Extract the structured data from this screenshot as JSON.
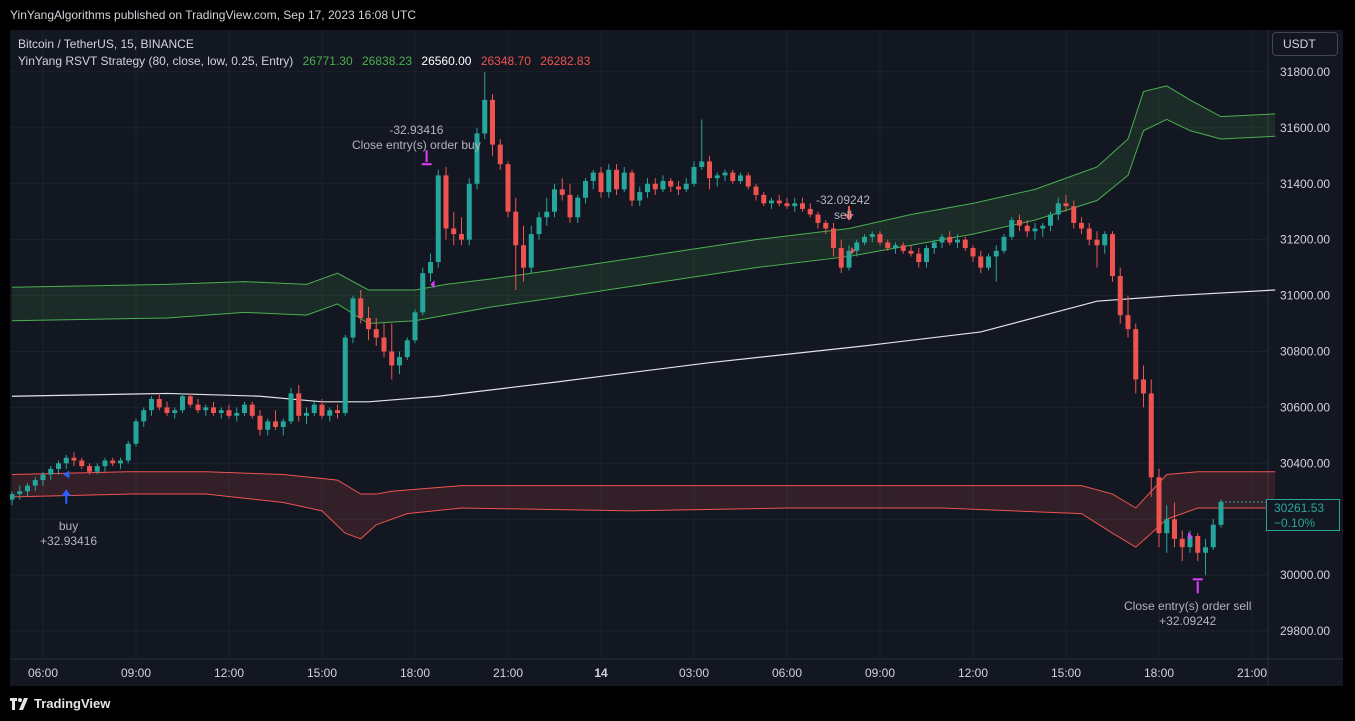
{
  "publisher_line": "YinYangAlgorithms published on TradingView.com, Sep 17, 2023 16:08 UTC",
  "symbol_line": "Bitcoin / TetherUS, 15, BINANCE",
  "indicator": {
    "name": "YinYang RSVT Strategy (80, close, low, 0.25, Entry)",
    "values": [
      "26771.30",
      "26838.23",
      "26560.00",
      "26348.70",
      "26282.83"
    ],
    "value_colors": [
      "#4caf50",
      "#4caf50",
      "#ffffff",
      "#ef5350",
      "#ef5350"
    ]
  },
  "currency_button": "USDT",
  "last_price": {
    "value": "30261.53",
    "change": "−0.10%",
    "color": "#26a69a"
  },
  "annotations": {
    "buy_label": "buy",
    "buy_value": "+32.93416",
    "close_buy_value": "-32.93416",
    "close_buy_label": "Close entry(s) order buy",
    "sell_value": "-32.09242",
    "sell_label": "sell",
    "close_sell_label": "Close entry(s) order sell",
    "close_sell_value": "+32.09242"
  },
  "brand": "TradingView",
  "colors": {
    "bg": "#131722",
    "up": "#26a69a",
    "down": "#ef5350",
    "upper_band": "#4caf50",
    "lower_band": "#ef5350",
    "ma": "#e0e3eb",
    "grid": "#1e222d",
    "signal_buy": "#2962ff",
    "signal_close": "#e040fb",
    "signal_sell": "#ef5350"
  },
  "chart_data": {
    "type": "candlestick",
    "y_ticks": [
      31800,
      31600,
      31400,
      31200,
      31000,
      30800,
      30600,
      30400,
      30200,
      30000,
      29800
    ],
    "y_tick_labels": [
      "31800.00",
      "31600.00",
      "31400.00",
      "31200.00",
      "31000.00",
      "30800.00",
      "30600.00",
      "30400.00",
      "30200.00",
      "30000.00",
      "29800.00"
    ],
    "ylim": [
      29700,
      31950
    ],
    "x_ticks": [
      "06:00",
      "09:00",
      "12:00",
      "15:00",
      "18:00",
      "21:00",
      "14",
      "03:00",
      "06:00",
      "09:00",
      "12:00",
      "15:00",
      "18:00",
      "21:00"
    ],
    "x_tick_bars": [
      4,
      16,
      28,
      40,
      52,
      64,
      76,
      88,
      100,
      112,
      124,
      136,
      148,
      160
    ],
    "candles": [
      [
        30270,
        30300,
        30250,
        30290
      ],
      [
        30290,
        30320,
        30270,
        30300
      ],
      [
        30300,
        30330,
        30280,
        30320
      ],
      [
        30320,
        30350,
        30300,
        30340
      ],
      [
        30340,
        30370,
        30320,
        30360
      ],
      [
        30360,
        30390,
        30340,
        30380
      ],
      [
        30380,
        30410,
        30360,
        30400
      ],
      [
        30400,
        30430,
        30380,
        30420
      ],
      [
        30420,
        30440,
        30390,
        30410
      ],
      [
        30410,
        30420,
        30380,
        30390
      ],
      [
        30390,
        30400,
        30360,
        30370
      ],
      [
        30370,
        30400,
        30360,
        30390
      ],
      [
        30390,
        30420,
        30370,
        30410
      ],
      [
        30410,
        30420,
        30390,
        30400
      ],
      [
        30400,
        30420,
        30380,
        30410
      ],
      [
        30410,
        30480,
        30400,
        30470
      ],
      [
        30470,
        30560,
        30460,
        30550
      ],
      [
        30550,
        30600,
        30530,
        30590
      ],
      [
        30590,
        30640,
        30570,
        30630
      ],
      [
        30630,
        30650,
        30590,
        30600
      ],
      [
        30600,
        30620,
        30570,
        30580
      ],
      [
        30580,
        30600,
        30560,
        30590
      ],
      [
        30590,
        30650,
        30580,
        30640
      ],
      [
        30640,
        30650,
        30600,
        30610
      ],
      [
        30610,
        30630,
        30580,
        30590
      ],
      [
        30590,
        30610,
        30570,
        30600
      ],
      [
        30600,
        30620,
        30570,
        30580
      ],
      [
        30580,
        30600,
        30560,
        30590
      ],
      [
        30590,
        30610,
        30560,
        30570
      ],
      [
        30570,
        30600,
        30550,
        30580
      ],
      [
        30580,
        30620,
        30570,
        30610
      ],
      [
        30610,
        30620,
        30560,
        30570
      ],
      [
        30570,
        30590,
        30500,
        30520
      ],
      [
        30520,
        30560,
        30500,
        30550
      ],
      [
        30550,
        30590,
        30520,
        30530
      ],
      [
        30530,
        30560,
        30500,
        30550
      ],
      [
        30550,
        30670,
        30540,
        30650
      ],
      [
        30650,
        30680,
        30550,
        30570
      ],
      [
        30570,
        30600,
        30540,
        30580
      ],
      [
        30580,
        30620,
        30570,
        30610
      ],
      [
        30610,
        30630,
        30560,
        30570
      ],
      [
        30570,
        30600,
        30550,
        30590
      ],
      [
        30590,
        30610,
        30560,
        30580
      ],
      [
        30580,
        30860,
        30570,
        30850
      ],
      [
        30850,
        31000,
        30830,
        30990
      ],
      [
        30990,
        31020,
        30900,
        30920
      ],
      [
        30920,
        30960,
        30840,
        30880
      ],
      [
        30880,
        30920,
        30820,
        30850
      ],
      [
        30850,
        30900,
        30780,
        30800
      ],
      [
        30800,
        30900,
        30700,
        30750
      ],
      [
        30750,
        30800,
        30720,
        30780
      ],
      [
        30780,
        30850,
        30770,
        30840
      ],
      [
        30840,
        30950,
        30830,
        30940
      ],
      [
        30940,
        31100,
        30930,
        31080
      ],
      [
        31080,
        31150,
        31050,
        31120
      ],
      [
        31120,
        31450,
        31100,
        31430
      ],
      [
        31430,
        31460,
        31200,
        31240
      ],
      [
        31240,
        31300,
        31180,
        31220
      ],
      [
        31220,
        31280,
        31180,
        31200
      ],
      [
        31200,
        31420,
        31180,
        31400
      ],
      [
        31400,
        31600,
        31380,
        31580
      ],
      [
        31580,
        31800,
        31560,
        31700
      ],
      [
        31700,
        31720,
        31500,
        31540
      ],
      [
        31540,
        31560,
        31450,
        31470
      ],
      [
        31470,
        31480,
        31280,
        31300
      ],
      [
        31300,
        31350,
        31020,
        31180
      ],
      [
        31180,
        31250,
        31050,
        31100
      ],
      [
        31100,
        31250,
        31080,
        31220
      ],
      [
        31220,
        31300,
        31200,
        31280
      ],
      [
        31280,
        31350,
        31250,
        31300
      ],
      [
        31300,
        31400,
        31280,
        31380
      ],
      [
        31380,
        31420,
        31340,
        31360
      ],
      [
        31360,
        31400,
        31260,
        31280
      ],
      [
        31280,
        31360,
        31260,
        31350
      ],
      [
        31350,
        31420,
        31330,
        31410
      ],
      [
        31410,
        31450,
        31380,
        31440
      ],
      [
        31440,
        31460,
        31350,
        31370
      ],
      [
        31370,
        31470,
        31350,
        31450
      ],
      [
        31450,
        31470,
        31360,
        31380
      ],
      [
        31380,
        31460,
        31370,
        31440
      ],
      [
        31440,
        31450,
        31320,
        31340
      ],
      [
        31340,
        31390,
        31320,
        31370
      ],
      [
        31370,
        31420,
        31350,
        31400
      ],
      [
        31400,
        31420,
        31360,
        31380
      ],
      [
        31380,
        31430,
        31370,
        31410
      ],
      [
        31410,
        31420,
        31370,
        31390
      ],
      [
        31390,
        31410,
        31360,
        31380
      ],
      [
        31380,
        31420,
        31370,
        31400
      ],
      [
        31400,
        31480,
        31390,
        31460
      ],
      [
        31460,
        31630,
        31450,
        31480
      ],
      [
        31480,
        31500,
        31380,
        31420
      ],
      [
        31420,
        31440,
        31390,
        31430
      ],
      [
        31430,
        31450,
        31410,
        31440
      ],
      [
        31440,
        31450,
        31400,
        31410
      ],
      [
        31410,
        31440,
        31400,
        31430
      ],
      [
        31430,
        31440,
        31380,
        31390
      ],
      [
        31390,
        31400,
        31340,
        31360
      ],
      [
        31360,
        31370,
        31320,
        31330
      ],
      [
        31330,
        31350,
        31310,
        31340
      ],
      [
        31340,
        31360,
        31320,
        31330
      ],
      [
        31330,
        31350,
        31310,
        31320
      ],
      [
        31320,
        31350,
        31300,
        31330
      ],
      [
        31330,
        31350,
        31300,
        31310
      ],
      [
        31310,
        31330,
        31280,
        31290
      ],
      [
        31290,
        31300,
        31240,
        31260
      ],
      [
        31260,
        31270,
        31220,
        31240
      ],
      [
        31240,
        31260,
        31140,
        31170
      ],
      [
        31170,
        31200,
        31080,
        31100
      ],
      [
        31100,
        31180,
        31090,
        31160
      ],
      [
        31160,
        31200,
        31140,
        31190
      ],
      [
        31190,
        31220,
        31180,
        31210
      ],
      [
        31210,
        31230,
        31190,
        31220
      ],
      [
        31220,
        31230,
        31180,
        31190
      ],
      [
        31190,
        31200,
        31160,
        31170
      ],
      [
        31170,
        31190,
        31150,
        31180
      ],
      [
        31180,
        31190,
        31150,
        31160
      ],
      [
        31160,
        31180,
        31140,
        31150
      ],
      [
        31150,
        31170,
        31100,
        31120
      ],
      [
        31120,
        31180,
        31100,
        31170
      ],
      [
        31170,
        31200,
        31150,
        31190
      ],
      [
        31190,
        31220,
        31170,
        31210
      ],
      [
        31210,
        31230,
        31180,
        31190
      ],
      [
        31190,
        31220,
        31170,
        31200
      ],
      [
        31200,
        31210,
        31160,
        31170
      ],
      [
        31170,
        31180,
        31120,
        31140
      ],
      [
        31140,
        31160,
        31080,
        31100
      ],
      [
        31100,
        31150,
        31090,
        31140
      ],
      [
        31140,
        31180,
        31050,
        31160
      ],
      [
        31160,
        31220,
        31150,
        31210
      ],
      [
        31210,
        31280,
        31200,
        31270
      ],
      [
        31270,
        31290,
        31230,
        31250
      ],
      [
        31250,
        31270,
        31210,
        31230
      ],
      [
        31230,
        31260,
        31200,
        31240
      ],
      [
        31240,
        31260,
        31210,
        31250
      ],
      [
        31250,
        31300,
        31230,
        31290
      ],
      [
        31290,
        31350,
        31270,
        31330
      ],
      [
        31330,
        31360,
        31300,
        31320
      ],
      [
        31320,
        31340,
        31240,
        31260
      ],
      [
        31260,
        31280,
        31220,
        31240
      ],
      [
        31240,
        31260,
        31180,
        31200
      ],
      [
        31200,
        31230,
        31100,
        31180
      ],
      [
        31180,
        31230,
        31150,
        31220
      ],
      [
        31220,
        31230,
        31050,
        31070
      ],
      [
        31070,
        31100,
        30900,
        30930
      ],
      [
        30930,
        31000,
        30850,
        30880
      ],
      [
        30880,
        30900,
        30650,
        30700
      ],
      [
        30700,
        30750,
        30600,
        30650
      ],
      [
        30650,
        30700,
        30280,
        30350
      ],
      [
        30350,
        30380,
        30100,
        30150
      ],
      [
        30150,
        30250,
        30080,
        30200
      ],
      [
        30200,
        30260,
        30100,
        30130
      ],
      [
        30130,
        30160,
        30050,
        30100
      ],
      [
        30100,
        30160,
        30080,
        30140
      ],
      [
        30140,
        30150,
        30050,
        30080
      ],
      [
        30080,
        30130,
        30000,
        30100
      ],
      [
        30100,
        30200,
        30090,
        30180
      ],
      [
        30180,
        30270,
        30170,
        30262
      ]
    ],
    "upper_band": {
      "outer": [
        [
          0,
          31030
        ],
        [
          20,
          31040
        ],
        [
          30,
          31050
        ],
        [
          38,
          31040
        ],
        [
          42,
          31080
        ],
        [
          46,
          31020
        ],
        [
          52,
          31020
        ],
        [
          56,
          31040
        ],
        [
          62,
          31060
        ],
        [
          72,
          31100
        ],
        [
          84,
          31150
        ],
        [
          96,
          31200
        ],
        [
          108,
          31240
        ],
        [
          116,
          31290
        ],
        [
          124,
          31330
        ],
        [
          132,
          31380
        ],
        [
          140,
          31460
        ],
        [
          144,
          31560
        ],
        [
          146,
          31730
        ],
        [
          149,
          31750
        ],
        [
          152,
          31700
        ],
        [
          156,
          31640
        ],
        [
          163,
          31650
        ]
      ],
      "inner": [
        [
          0,
          30910
        ],
        [
          20,
          30920
        ],
        [
          30,
          30940
        ],
        [
          38,
          30930
        ],
        [
          42,
          30970
        ],
        [
          46,
          30900
        ],
        [
          52,
          30910
        ],
        [
          56,
          30930
        ],
        [
          62,
          30960
        ],
        [
          72,
          31000
        ],
        [
          84,
          31050
        ],
        [
          96,
          31100
        ],
        [
          108,
          31140
        ],
        [
          116,
          31180
        ],
        [
          124,
          31220
        ],
        [
          132,
          31270
        ],
        [
          140,
          31340
        ],
        [
          144,
          31430
        ],
        [
          146,
          31590
        ],
        [
          149,
          31630
        ],
        [
          152,
          31590
        ],
        [
          156,
          31560
        ],
        [
          163,
          31570
        ]
      ]
    },
    "lower_band": {
      "outer": [
        [
          0,
          30360
        ],
        [
          15,
          30370
        ],
        [
          25,
          30370
        ],
        [
          35,
          30360
        ],
        [
          42,
          30340
        ],
        [
          45,
          30290
        ],
        [
          47,
          30290
        ],
        [
          49,
          30300
        ],
        [
          58,
          30320
        ],
        [
          80,
          30320
        ],
        [
          100,
          30320
        ],
        [
          120,
          30320
        ],
        [
          138,
          30320
        ],
        [
          142,
          30290
        ],
        [
          145,
          30240
        ],
        [
          147,
          30300
        ],
        [
          149,
          30360
        ],
        [
          153,
          30370
        ],
        [
          163,
          30370
        ]
      ],
      "inner": [
        [
          0,
          30280
        ],
        [
          15,
          30290
        ],
        [
          25,
          30290
        ],
        [
          35,
          30260
        ],
        [
          40,
          30230
        ],
        [
          43,
          30150
        ],
        [
          45,
          30130
        ],
        [
          47,
          30180
        ],
        [
          51,
          30220
        ],
        [
          58,
          30240
        ],
        [
          80,
          30230
        ],
        [
          100,
          30240
        ],
        [
          120,
          30240
        ],
        [
          138,
          30220
        ],
        [
          142,
          30150
        ],
        [
          145,
          30100
        ],
        [
          147,
          30150
        ],
        [
          149,
          30200
        ],
        [
          153,
          30240
        ],
        [
          163,
          30240
        ]
      ]
    },
    "ma": [
      [
        0,
        30640
      ],
      [
        20,
        30650
      ],
      [
        32,
        30640
      ],
      [
        40,
        30620
      ],
      [
        46,
        30620
      ],
      [
        55,
        30640
      ],
      [
        70,
        30690
      ],
      [
        90,
        30760
      ],
      [
        110,
        30820
      ],
      [
        125,
        30870
      ],
      [
        140,
        30980
      ],
      [
        150,
        31000
      ],
      [
        163,
        31020
      ]
    ]
  }
}
